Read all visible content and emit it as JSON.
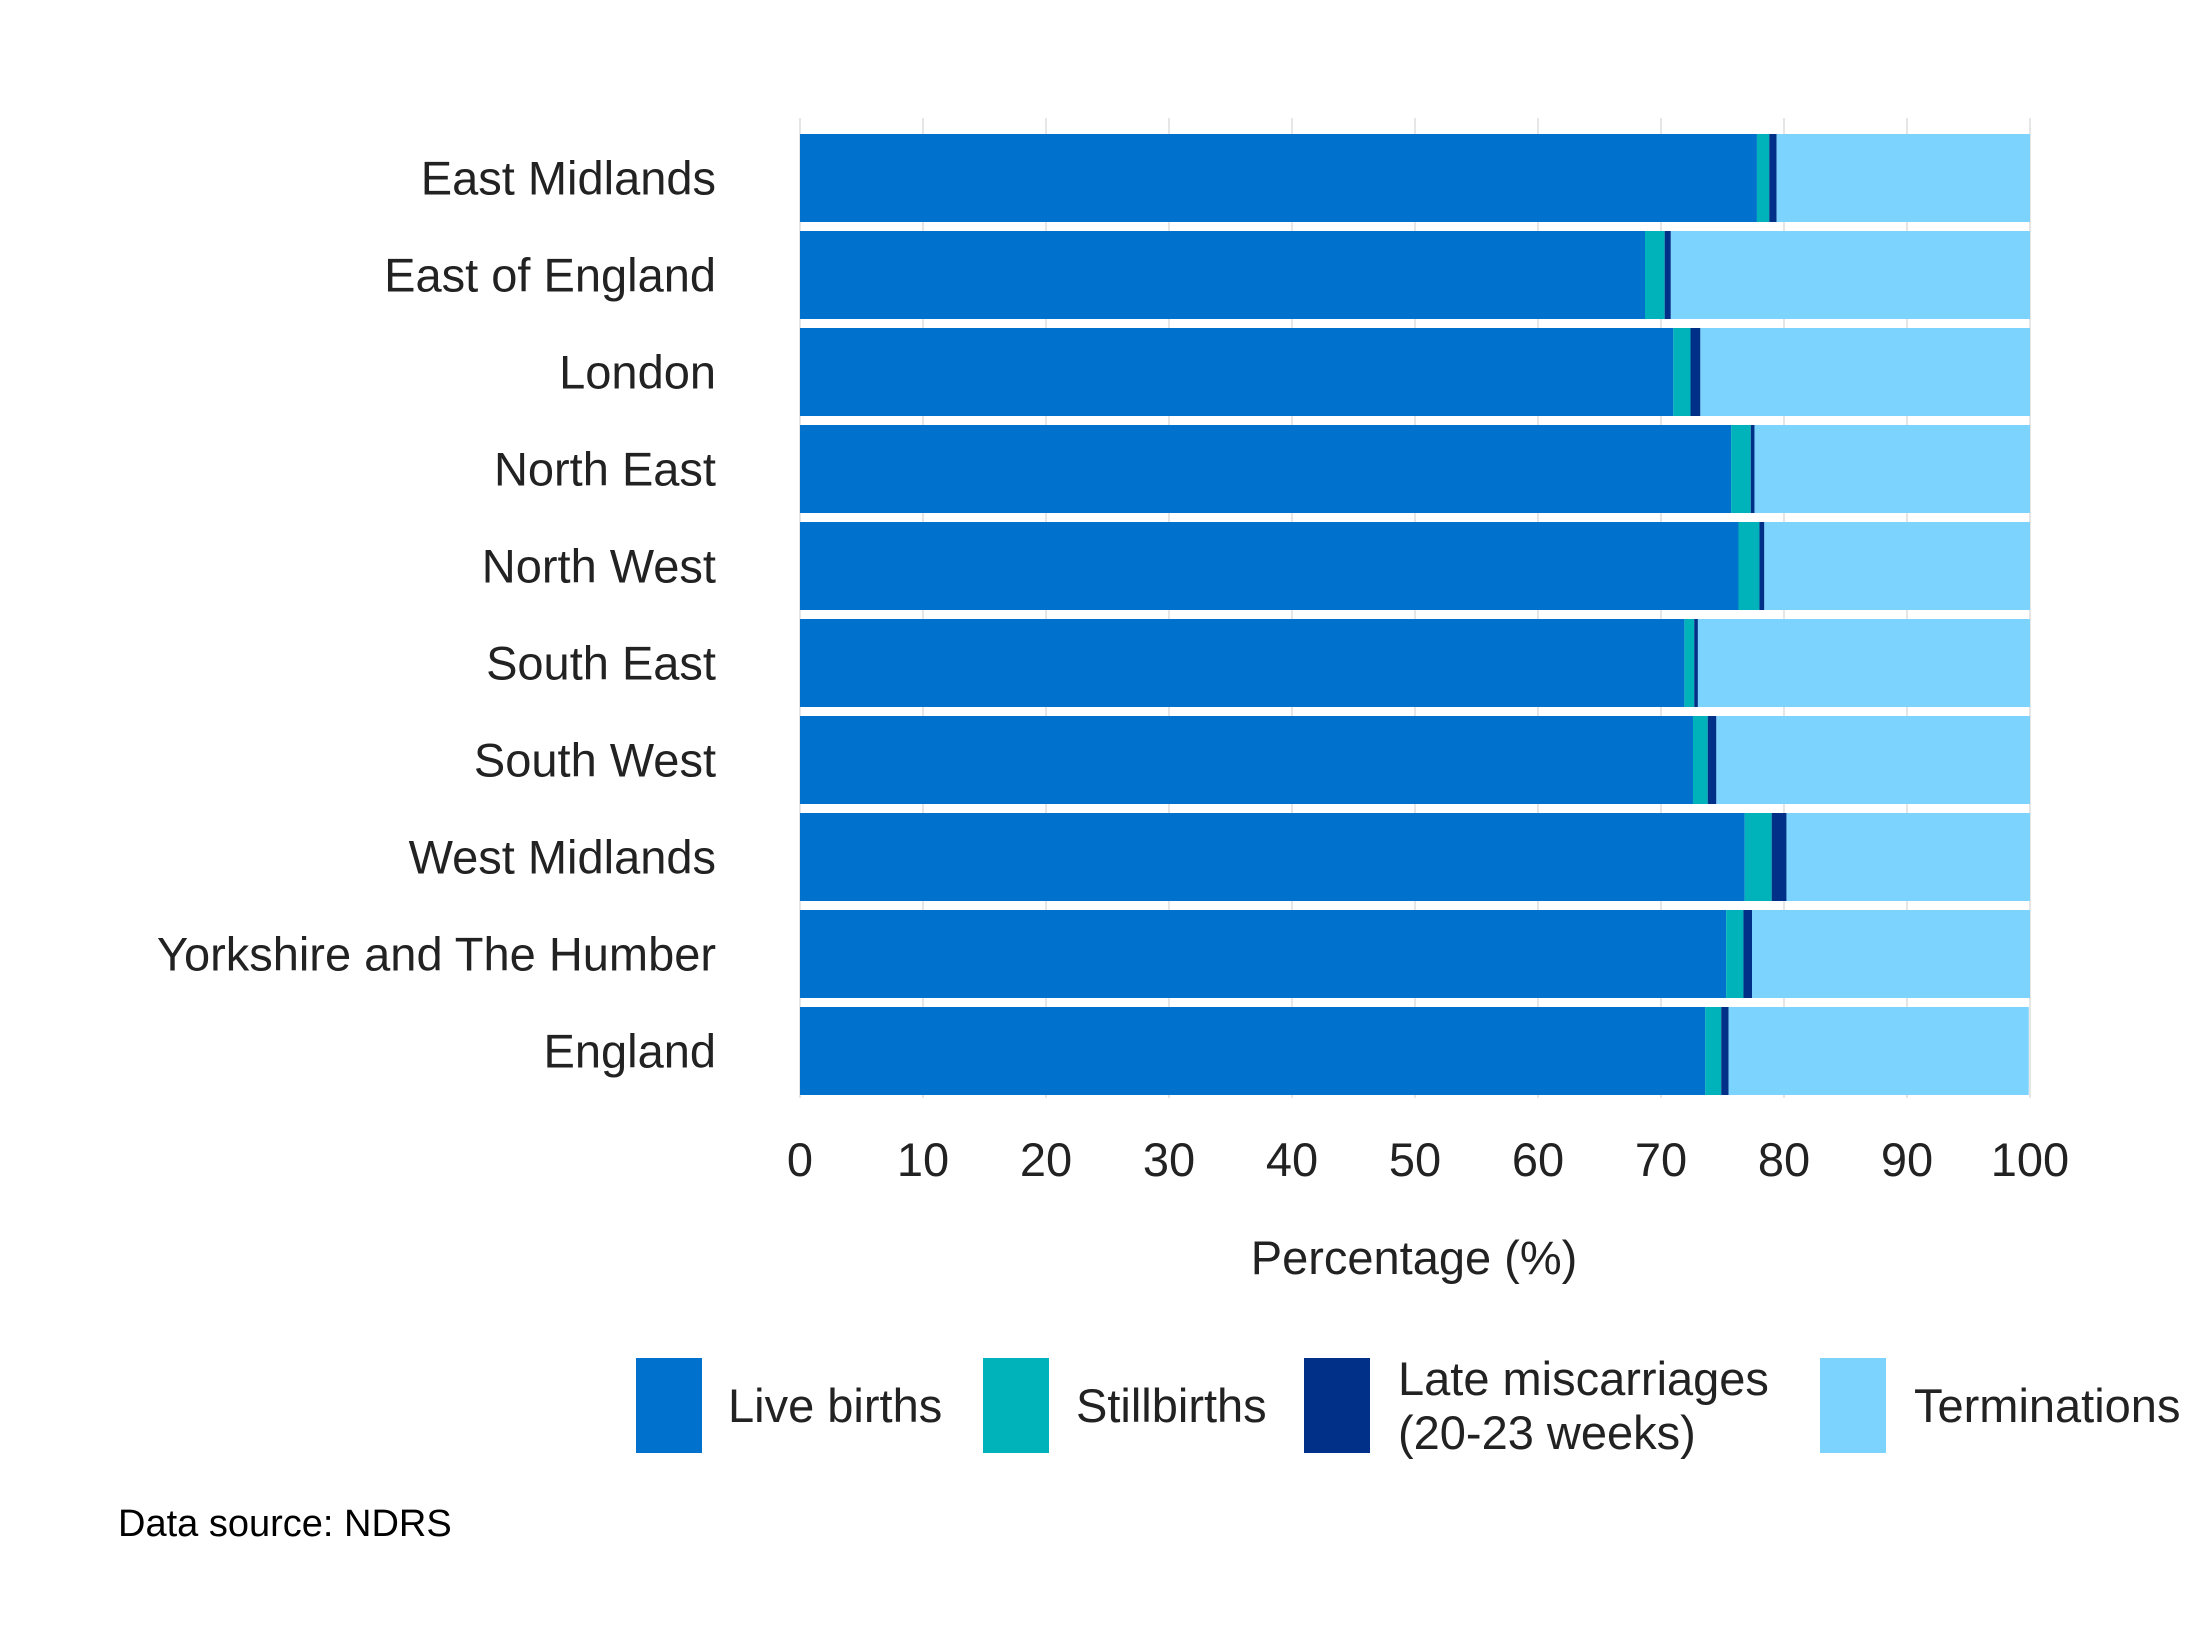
{
  "chart_data": {
    "type": "bar",
    "orientation": "horizontal",
    "stacked": true,
    "categories": [
      "East Midlands",
      "East of England",
      "London",
      "North East",
      "North West",
      "South East",
      "South West",
      "West Midlands",
      "Yorkshire and The Humber",
      "England"
    ],
    "series": [
      {
        "name": "Live births",
        "color": "#0072ce",
        "values": [
          77.8,
          68.7,
          71.0,
          75.7,
          76.3,
          71.9,
          72.6,
          76.8,
          75.3,
          73.6
        ]
      },
      {
        "name": "Stillbirths",
        "color": "#00b2b9",
        "values": [
          1.0,
          1.6,
          1.4,
          1.6,
          1.7,
          0.8,
          1.2,
          2.2,
          1.4,
          1.3
        ]
      },
      {
        "name": "Late miscarriages (20-23 weeks)",
        "legend_lines": [
          "Late miscarriages",
          "(20-23 weeks)"
        ],
        "color": "#003087",
        "values": [
          0.6,
          0.5,
          0.8,
          0.3,
          0.4,
          0.3,
          0.7,
          1.2,
          0.7,
          0.6
        ]
      },
      {
        "name": "Terminations",
        "color": "#7cd4fe",
        "values": [
          20.6,
          29.2,
          26.8,
          22.4,
          21.6,
          27.0,
          25.5,
          19.8,
          22.6,
          24.4
        ]
      }
    ],
    "xlim": [
      0,
      100
    ],
    "xticks": [
      "0",
      "10",
      "20",
      "30",
      "40",
      "50",
      "60",
      "70",
      "80",
      "90",
      "100"
    ],
    "xlabel": "Percentage (%)",
    "ylabel": "",
    "grid": true,
    "legend_position": "bottom",
    "note": "Data source: NDRS"
  }
}
